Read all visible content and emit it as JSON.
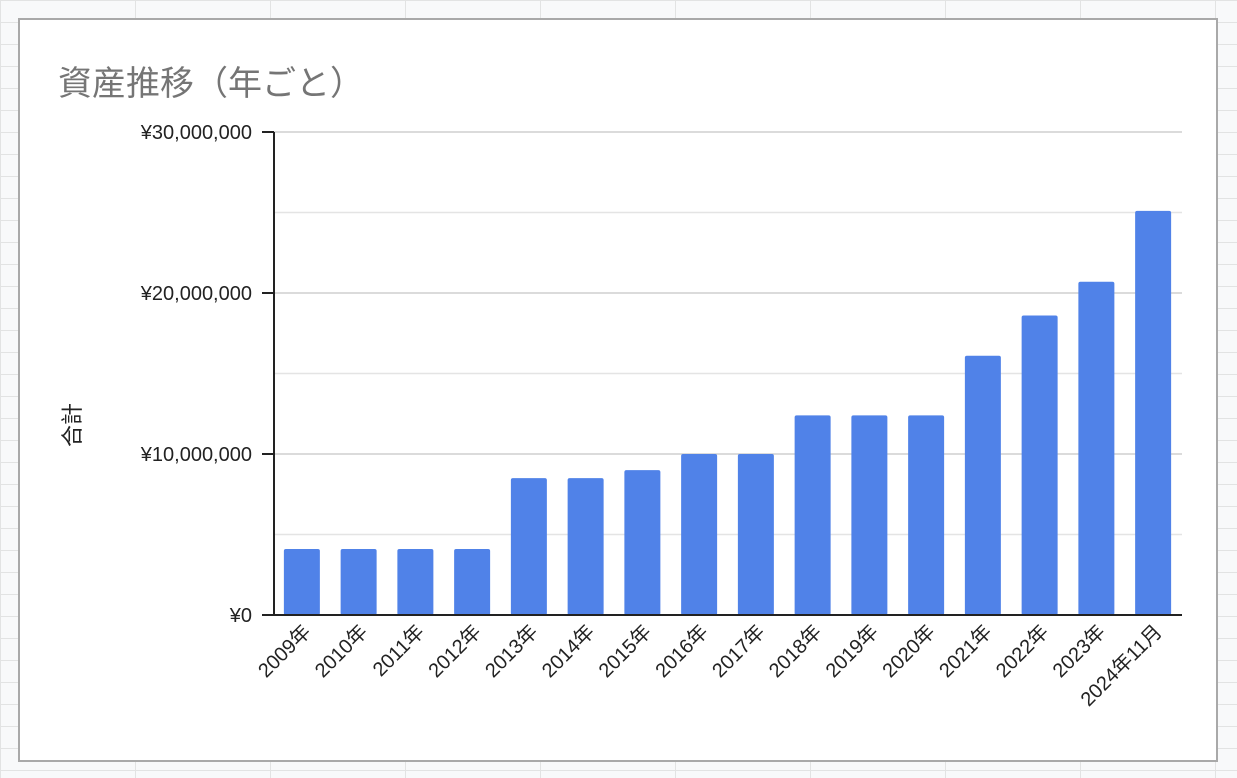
{
  "chart_data": {
    "type": "bar",
    "title": "資産推移（年ごと）",
    "ylabel": "合計",
    "xlabel": "",
    "categories": [
      "2009年",
      "2010年",
      "2011年",
      "2012年",
      "2013年",
      "2014年",
      "2015年",
      "2016年",
      "2017年",
      "2018年",
      "2019年",
      "2020年",
      "2021年",
      "2022年",
      "2023年",
      "2024年11月"
    ],
    "values": [
      4100000,
      4100000,
      4100000,
      4100000,
      8500000,
      8500000,
      9000000,
      10000000,
      10000000,
      12400000,
      12400000,
      12400000,
      16100000,
      18600000,
      20700000,
      25100000
    ],
    "ylim": [
      0,
      30000000
    ],
    "ytick_labels": [
      "¥0",
      "¥10,000,000",
      "¥20,000,000",
      "¥30,000,000"
    ],
    "ytick_values": [
      0,
      10000000,
      20000000,
      30000000
    ],
    "minor_gridlines": [
      5000000,
      15000000,
      25000000
    ],
    "grid": true,
    "bar_color": "#5082e8"
  }
}
